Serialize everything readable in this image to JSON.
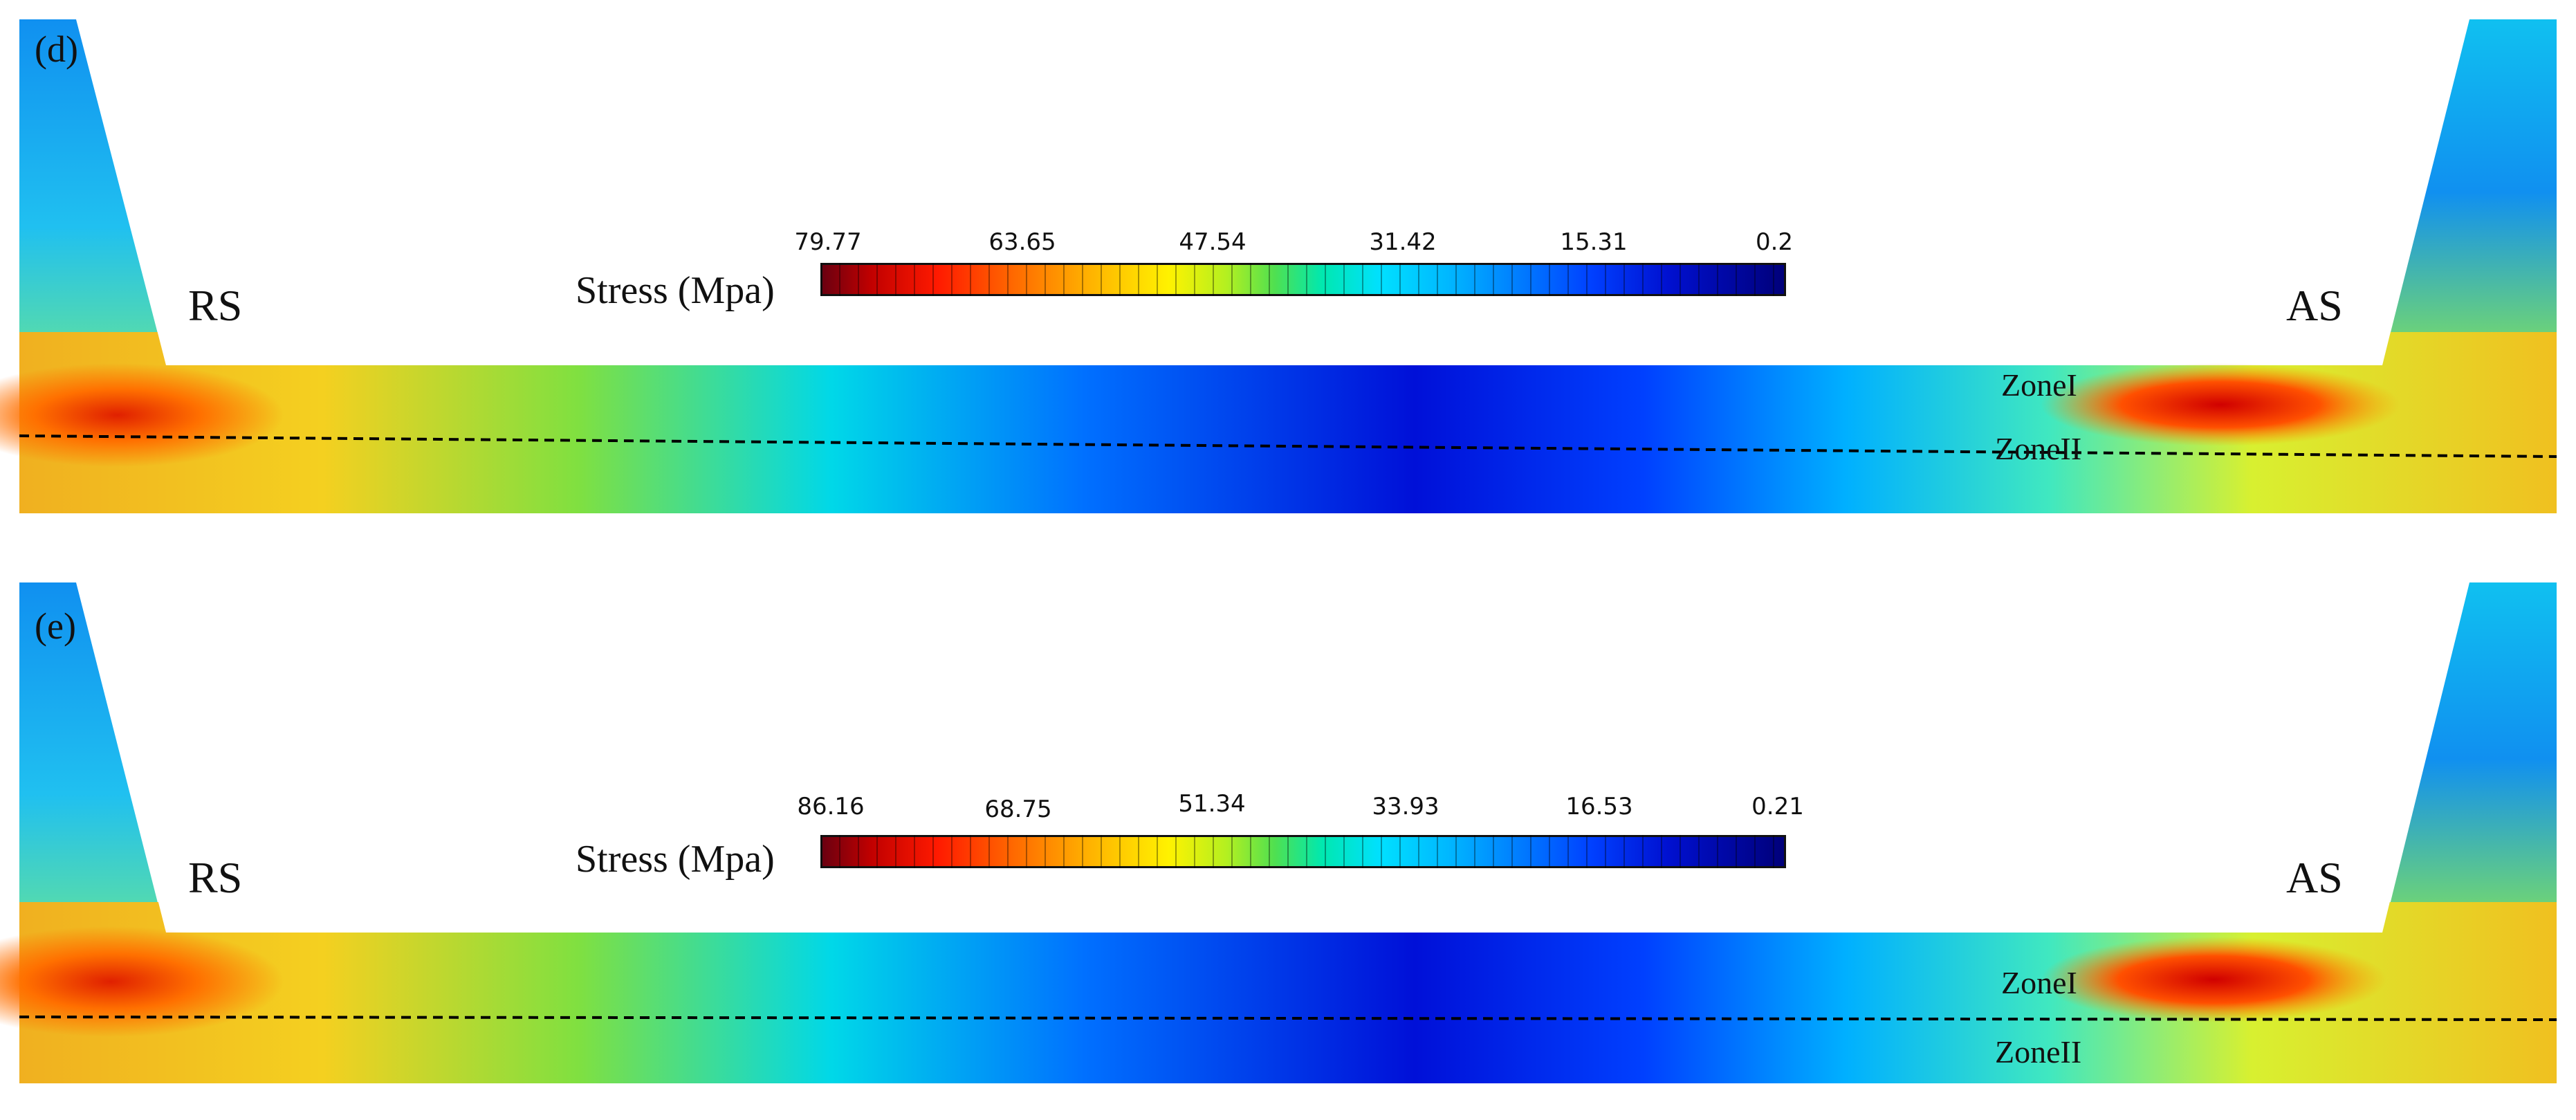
{
  "panels": [
    {
      "label": "(d)",
      "side_left": "RS",
      "side_right": "AS",
      "zone_upper": "ZoneI",
      "zone_lower": "ZoneII",
      "colorbar": {
        "title": "Stress (Mpa)",
        "ticks": [
          "79.77",
          "63.65",
          "47.54",
          "31.42",
          "15.31",
          "0.2"
        ]
      }
    },
    {
      "label": "(e)",
      "side_left": "RS",
      "side_right": "AS",
      "zone_upper": "ZoneI",
      "zone_lower": "ZoneII",
      "colorbar": {
        "title": "Stress (Mpa)",
        "ticks": [
          "86.16",
          "68.75",
          "51.34",
          "33.93",
          "16.53",
          "0.21"
        ]
      }
    }
  ],
  "colors": {
    "colormap_high": "#6b0010",
    "colormap_mid": "#00e0ff",
    "colormap_low": "#00007a",
    "boundary_line": "#000000"
  }
}
